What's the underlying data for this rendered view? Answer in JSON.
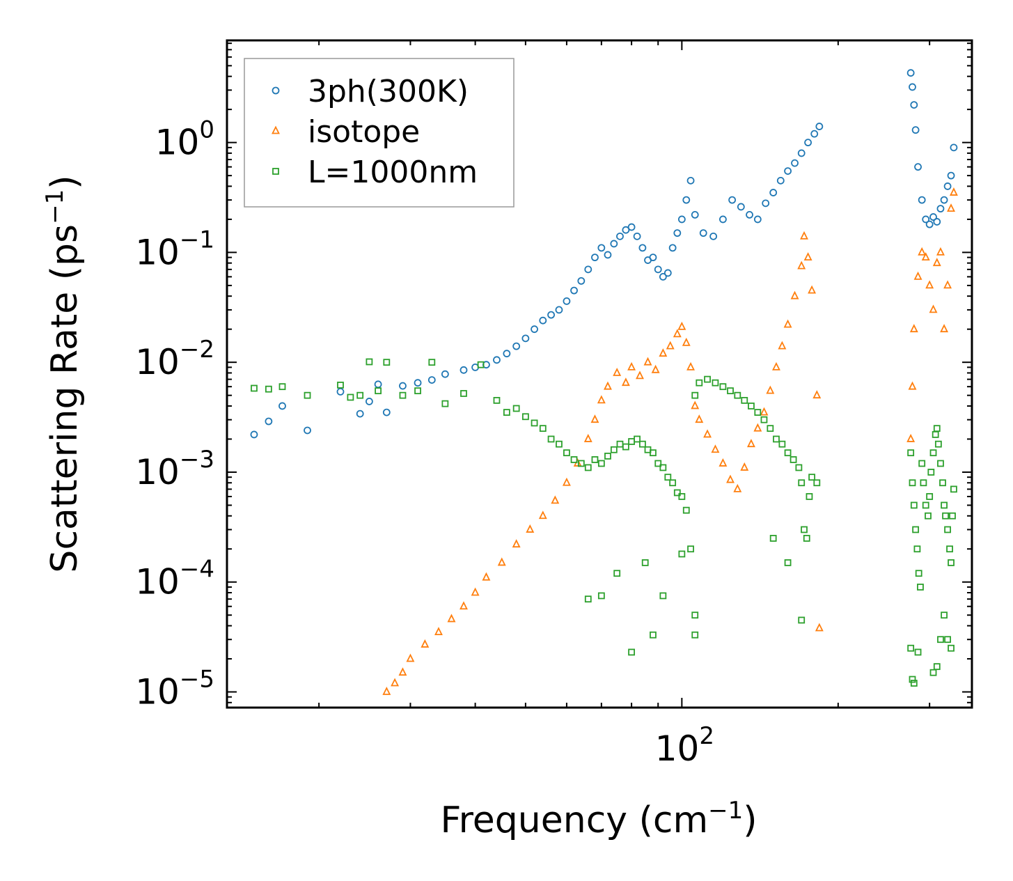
{
  "chart_data": {
    "type": "scatter",
    "xscale": "log",
    "yscale": "log",
    "xlim": [
      13.3,
      362
    ],
    "ylim": [
      7.2e-06,
      8.5
    ],
    "xlabel": "Frequency (cm",
    "xlabel_exp": "−1",
    "xlabel_close": ")",
    "ylabel": "Scattering Rate (ps",
    "ylabel_exp": "−1",
    "ylabel_close": ")",
    "x_ticks": [
      {
        "base": "10",
        "exp": "2",
        "value": 100
      }
    ],
    "y_ticks": [
      {
        "base": "10",
        "exp": "0",
        "value": 1
      },
      {
        "base": "10",
        "exp": "−1",
        "value": 0.1
      },
      {
        "base": "10",
        "exp": "−2",
        "value": 0.01
      },
      {
        "base": "10",
        "exp": "−3",
        "value": 0.001
      },
      {
        "base": "10",
        "exp": "−4",
        "value": 0.0001
      },
      {
        "base": "10",
        "exp": "−5",
        "value": 1e-05
      }
    ],
    "legend_position": "top-left",
    "series": [
      {
        "name": "3ph(300K)",
        "marker": "circle",
        "color": "#1f77b4",
        "points": [
          [
            15,
            0.0022
          ],
          [
            16,
            0.0029
          ],
          [
            17,
            0.004
          ],
          [
            19,
            0.0024
          ],
          [
            22,
            0.0054
          ],
          [
            24,
            0.0034
          ],
          [
            25,
            0.0044
          ],
          [
            26,
            0.0063
          ],
          [
            27,
            0.0035
          ],
          [
            29,
            0.0061
          ],
          [
            31,
            0.0065
          ],
          [
            33,
            0.0069
          ],
          [
            35,
            0.0078
          ],
          [
            38,
            0.0085
          ],
          [
            40,
            0.009
          ],
          [
            42,
            0.0095
          ],
          [
            44,
            0.0105
          ],
          [
            46,
            0.012
          ],
          [
            48,
            0.014
          ],
          [
            50,
            0.0165
          ],
          [
            52,
            0.02
          ],
          [
            54,
            0.024
          ],
          [
            56,
            0.027
          ],
          [
            58,
            0.03
          ],
          [
            60,
            0.036
          ],
          [
            62,
            0.045
          ],
          [
            64,
            0.055
          ],
          [
            66,
            0.07
          ],
          [
            68,
            0.09
          ],
          [
            70,
            0.11
          ],
          [
            72,
            0.095
          ],
          [
            74,
            0.12
          ],
          [
            76,
            0.14
          ],
          [
            78,
            0.16
          ],
          [
            80,
            0.17
          ],
          [
            82,
            0.14
          ],
          [
            84,
            0.11
          ],
          [
            86,
            0.085
          ],
          [
            88,
            0.09
          ],
          [
            90,
            0.07
          ],
          [
            92,
            0.06
          ],
          [
            94,
            0.065
          ],
          [
            96,
            0.11
          ],
          [
            98,
            0.15
          ],
          [
            100,
            0.2
          ],
          [
            102,
            0.3
          ],
          [
            104,
            0.45
          ],
          [
            106,
            0.22
          ],
          [
            110,
            0.15
          ],
          [
            115,
            0.14
          ],
          [
            120,
            0.2
          ],
          [
            125,
            0.3
          ],
          [
            130,
            0.26
          ],
          [
            135,
            0.22
          ],
          [
            140,
            0.2
          ],
          [
            145,
            0.28
          ],
          [
            150,
            0.35
          ],
          [
            155,
            0.45
          ],
          [
            160,
            0.55
          ],
          [
            165,
            0.65
          ],
          [
            170,
            0.8
          ],
          [
            175,
            1.0
          ],
          [
            180,
            1.2
          ],
          [
            184,
            1.4
          ],
          [
            276,
            4.3
          ],
          [
            278,
            3.2
          ],
          [
            280,
            2.2
          ],
          [
            282,
            1.3
          ],
          [
            285,
            0.6
          ],
          [
            290,
            0.3
          ],
          [
            295,
            0.2
          ],
          [
            300,
            0.18
          ],
          [
            305,
            0.21
          ],
          [
            310,
            0.19
          ],
          [
            315,
            0.25
          ],
          [
            320,
            0.3
          ],
          [
            325,
            0.4
          ],
          [
            330,
            0.5
          ],
          [
            334,
            0.9
          ]
        ]
      },
      {
        "name": "isotope",
        "marker": "triangle",
        "color": "#ff7f0e",
        "points": [
          [
            27,
            1e-05
          ],
          [
            28,
            1.2e-05
          ],
          [
            29,
            1.5e-05
          ],
          [
            30,
            2e-05
          ],
          [
            32,
            2.7e-05
          ],
          [
            34,
            3.5e-05
          ],
          [
            36,
            4.6e-05
          ],
          [
            38,
            6e-05
          ],
          [
            40,
            8e-05
          ],
          [
            42,
            0.00011
          ],
          [
            45,
            0.00015
          ],
          [
            48,
            0.00022
          ],
          [
            51,
            0.0003
          ],
          [
            54,
            0.0004
          ],
          [
            57,
            0.00055
          ],
          [
            60,
            0.0008
          ],
          [
            63,
            0.0012
          ],
          [
            66,
            0.002
          ],
          [
            68,
            0.003
          ],
          [
            70,
            0.0045
          ],
          [
            72,
            0.006
          ],
          [
            75,
            0.008
          ],
          [
            78,
            0.0065
          ],
          [
            80,
            0.009
          ],
          [
            83,
            0.0075
          ],
          [
            86,
            0.01
          ],
          [
            89,
            0.0085
          ],
          [
            92,
            0.012
          ],
          [
            95,
            0.014
          ],
          [
            98,
            0.018
          ],
          [
            100,
            0.021
          ],
          [
            102,
            0.015
          ],
          [
            104,
            0.009
          ],
          [
            106,
            0.004
          ],
          [
            108,
            0.003
          ],
          [
            112,
            0.0022
          ],
          [
            116,
            0.0016
          ],
          [
            120,
            0.0012
          ],
          [
            124,
            0.00085
          ],
          [
            128,
            0.0007
          ],
          [
            132,
            0.0011
          ],
          [
            136,
            0.0018
          ],
          [
            140,
            0.0025
          ],
          [
            144,
            0.0035
          ],
          [
            148,
            0.0055
          ],
          [
            152,
            0.009
          ],
          [
            156,
            0.014
          ],
          [
            160,
            0.022
          ],
          [
            165,
            0.04
          ],
          [
            170,
            0.075
          ],
          [
            172,
            0.14
          ],
          [
            175,
            0.09
          ],
          [
            178,
            0.045
          ],
          [
            182,
            0.005
          ],
          [
            184,
            3.8e-05
          ],
          [
            276,
            0.002
          ],
          [
            278,
            0.006
          ],
          [
            280,
            0.02
          ],
          [
            285,
            0.06
          ],
          [
            290,
            0.1
          ],
          [
            295,
            0.09
          ],
          [
            300,
            0.05
          ],
          [
            305,
            0.03
          ],
          [
            310,
            0.08
          ],
          [
            315,
            0.1
          ],
          [
            320,
            0.02
          ],
          [
            325,
            0.05
          ],
          [
            330,
            0.25
          ],
          [
            334,
            0.35
          ]
        ]
      },
      {
        "name": "L=1000nm",
        "marker": "square",
        "color": "#2ca02c",
        "points": [
          [
            15,
            0.0058
          ],
          [
            16,
            0.0057
          ],
          [
            17,
            0.006
          ],
          [
            19,
            0.005
          ],
          [
            22,
            0.0062
          ],
          [
            23,
            0.0048
          ],
          [
            24,
            0.005
          ],
          [
            25,
            0.0101
          ],
          [
            26,
            0.0055
          ],
          [
            27,
            0.01
          ],
          [
            29,
            0.005
          ],
          [
            31,
            0.0055
          ],
          [
            33,
            0.01
          ],
          [
            35,
            0.0042
          ],
          [
            38,
            0.0052
          ],
          [
            41,
            0.0095
          ],
          [
            44,
            0.0045
          ],
          [
            46,
            0.0035
          ],
          [
            48,
            0.0038
          ],
          [
            50,
            0.0032
          ],
          [
            52,
            0.0028
          ],
          [
            54,
            0.0025
          ],
          [
            56,
            0.002
          ],
          [
            58,
            0.0018
          ],
          [
            60,
            0.0015
          ],
          [
            62,
            0.0013
          ],
          [
            64,
            0.0012
          ],
          [
            66,
            0.0011
          ],
          [
            68,
            0.0013
          ],
          [
            70,
            0.0012
          ],
          [
            72,
            0.0014
          ],
          [
            74,
            0.0016
          ],
          [
            76,
            0.0018
          ],
          [
            78,
            0.0017
          ],
          [
            80,
            0.0019
          ],
          [
            82,
            0.002
          ],
          [
            84,
            0.0018
          ],
          [
            86,
            0.0016
          ],
          [
            88,
            0.0015
          ],
          [
            90,
            0.0012
          ],
          [
            92,
            0.0011
          ],
          [
            94,
            0.0009
          ],
          [
            96,
            0.0008
          ],
          [
            98,
            0.00065
          ],
          [
            100,
            0.0006
          ],
          [
            102,
            0.00045
          ],
          [
            104,
            0.0002
          ],
          [
            106,
            0.005
          ],
          [
            108,
            0.0065
          ],
          [
            112,
            0.007
          ],
          [
            116,
            0.0065
          ],
          [
            120,
            0.006
          ],
          [
            124,
            0.0055
          ],
          [
            128,
            0.005
          ],
          [
            132,
            0.0045
          ],
          [
            136,
            0.004
          ],
          [
            140,
            0.0035
          ],
          [
            144,
            0.003
          ],
          [
            148,
            0.0025
          ],
          [
            152,
            0.002
          ],
          [
            156,
            0.0018
          ],
          [
            160,
            0.0015
          ],
          [
            164,
            0.0013
          ],
          [
            168,
            0.0011
          ],
          [
            170,
            0.0008
          ],
          [
            172,
            0.0003
          ],
          [
            174,
            0.00025
          ],
          [
            176,
            0.0006
          ],
          [
            178,
            0.0009
          ],
          [
            182,
            0.0008
          ],
          [
            66,
            7e-05
          ],
          [
            70,
            7.5e-05
          ],
          [
            75,
            0.00012
          ],
          [
            80,
            2.3e-05
          ],
          [
            85,
            0.00015
          ],
          [
            88,
            3.3e-05
          ],
          [
            92,
            7.5e-05
          ],
          [
            100,
            0.00018
          ],
          [
            106,
            3.3e-05
          ],
          [
            106,
            5e-05
          ],
          [
            170,
            4.5e-05
          ],
          [
            150,
            0.00025
          ],
          [
            160,
            0.00015
          ],
          [
            276,
            0.0015
          ],
          [
            278,
            0.0008
          ],
          [
            280,
            0.0005
          ],
          [
            282,
            0.0003
          ],
          [
            284,
            0.0002
          ],
          [
            286,
            0.00012
          ],
          [
            288,
            9e-05
          ],
          [
            290,
            0.0012
          ],
          [
            292,
            0.0008
          ],
          [
            295,
            0.0005
          ],
          [
            298,
            0.0004
          ],
          [
            300,
            0.0006
          ],
          [
            302,
            0.001
          ],
          [
            305,
            0.0015
          ],
          [
            308,
            0.0022
          ],
          [
            310,
            0.0025
          ],
          [
            312,
            0.0018
          ],
          [
            315,
            0.0012
          ],
          [
            318,
            0.0008
          ],
          [
            320,
            0.0005
          ],
          [
            322,
            0.0004
          ],
          [
            325,
            0.0003
          ],
          [
            328,
            0.0002
          ],
          [
            330,
            0.00015
          ],
          [
            332,
            0.0004
          ],
          [
            334,
            0.0007
          ],
          [
            276,
            2.5e-05
          ],
          [
            278,
            1.3e-05
          ],
          [
            280,
            1.2e-05
          ],
          [
            285,
            2.3e-05
          ],
          [
            305,
            1.5e-05
          ],
          [
            310,
            1.7e-05
          ],
          [
            315,
            3e-05
          ],
          [
            320,
            5e-05
          ],
          [
            325,
            3e-05
          ],
          [
            330,
            2.5e-05
          ]
        ]
      }
    ]
  }
}
